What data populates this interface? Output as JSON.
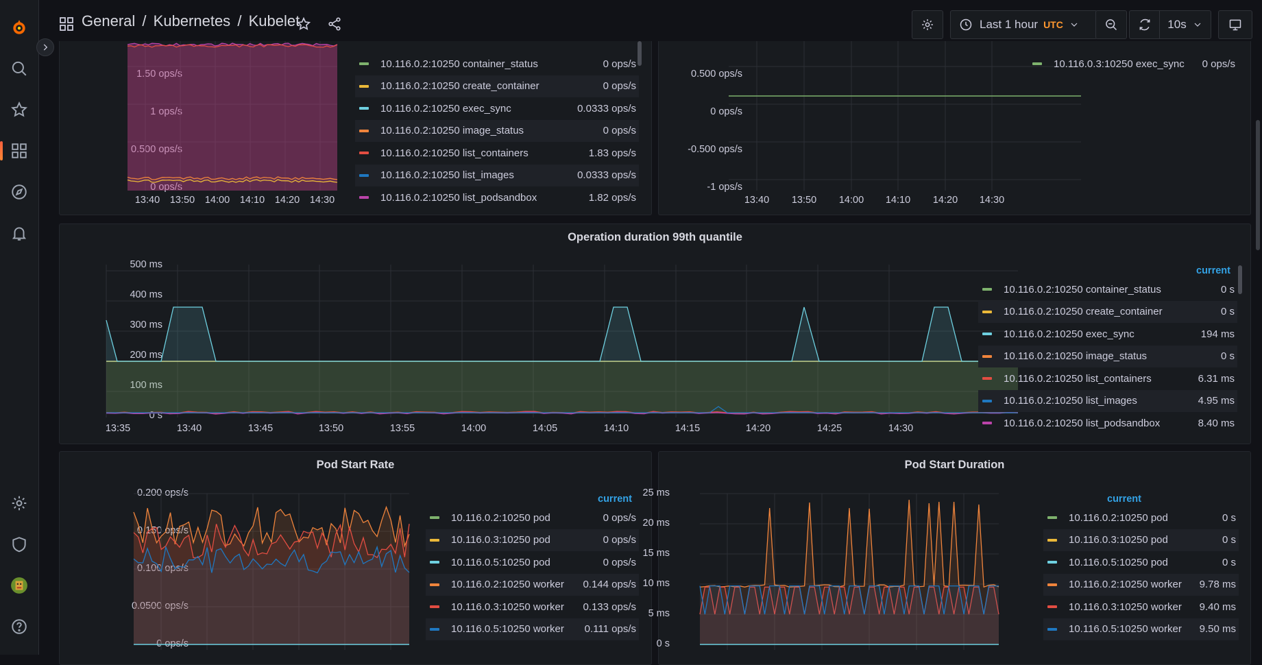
{
  "breadcrumb": {
    "general": "General",
    "sep1": "/",
    "kubernetes": "Kubernetes",
    "sep2": "/",
    "kubelet": "Kubelet"
  },
  "toolbar": {
    "time_range": "Last 1 hour",
    "timezone": "UTC",
    "refresh_interval": "10s"
  },
  "icons": [
    "grafana-logo-icon",
    "search-icon",
    "star-icon",
    "dashboards-icon",
    "explore-icon",
    "alerting-icon",
    "settings-icon",
    "shield-icon",
    "avatar",
    "help-icon",
    "chevron-right-icon",
    "dashboard-grid-icon",
    "share-icon",
    "gear-icon",
    "clock-icon",
    "chevron-down-icon",
    "zoom-out-icon",
    "refresh-icon",
    "tv-icon"
  ],
  "colors": {
    "green": "#7eb26d",
    "yellow": "#eab839",
    "cyan": "#6ed0e0",
    "orange": "#ef843c",
    "red": "#e24d42",
    "blue": "#1f78c1",
    "purple": "#ba43a9",
    "accent": "#33a2e5"
  },
  "panels": {
    "ops_left": {
      "ylabels": [
        "1.50 ops/s",
        "1 ops/s",
        "0.500 ops/s",
        "0 ops/s"
      ],
      "xlabels": [
        "13:40",
        "13:50",
        "14:00",
        "14:10",
        "14:20",
        "14:30"
      ],
      "legend": [
        {
          "name": "10.116.0.2:10250 container_status",
          "value": "0 ops/s",
          "color": "#7eb26d"
        },
        {
          "name": "10.116.0.2:10250 create_container",
          "value": "0 ops/s",
          "color": "#eab839"
        },
        {
          "name": "10.116.0.2:10250 exec_sync",
          "value": "0.0333 ops/s",
          "color": "#6ed0e0"
        },
        {
          "name": "10.116.0.2:10250 image_status",
          "value": "0 ops/s",
          "color": "#ef843c"
        },
        {
          "name": "10.116.0.2:10250 list_containers",
          "value": "1.83 ops/s",
          "color": "#e24d42"
        },
        {
          "name": "10.116.0.2:10250 list_images",
          "value": "0.0333 ops/s",
          "color": "#1f78c1"
        },
        {
          "name": "10.116.0.2:10250 list_podsandbox",
          "value": "1.82 ops/s",
          "color": "#ba43a9"
        }
      ]
    },
    "ops_right": {
      "ylabels": [
        "0.500 ops/s",
        "0 ops/s",
        "-0.500 ops/s",
        "-1 ops/s"
      ],
      "xlabels": [
        "13:40",
        "13:50",
        "14:00",
        "14:10",
        "14:20",
        "14:30"
      ],
      "legend": [
        {
          "name": "10.116.0.3:10250 exec_sync",
          "value": "0 ops/s",
          "color": "#7eb26d"
        }
      ]
    },
    "op_duration": {
      "title": "Operation duration 99th quantile",
      "legend_header": "current",
      "ylabels": [
        "500 ms",
        "400 ms",
        "300 ms",
        "200 ms",
        "100 ms",
        "0 s"
      ],
      "xlabels": [
        "13:35",
        "13:40",
        "13:45",
        "13:50",
        "13:55",
        "14:00",
        "14:05",
        "14:10",
        "14:15",
        "14:20",
        "14:25",
        "14:30"
      ],
      "legend": [
        {
          "name": "10.116.0.2:10250 container_status",
          "value": "0 s",
          "color": "#7eb26d"
        },
        {
          "name": "10.116.0.2:10250 create_container",
          "value": "0 s",
          "color": "#eab839"
        },
        {
          "name": "10.116.0.2:10250 exec_sync",
          "value": "194 ms",
          "color": "#6ed0e0"
        },
        {
          "name": "10.116.0.2:10250 image_status",
          "value": "0 s",
          "color": "#ef843c"
        },
        {
          "name": "10.116.0.2:10250 list_containers",
          "value": "6.31 ms",
          "color": "#e24d42"
        },
        {
          "name": "10.116.0.2:10250 list_images",
          "value": "4.95 ms",
          "color": "#1f78c1"
        },
        {
          "name": "10.116.0.2:10250 list_podsandbox",
          "value": "8.40 ms",
          "color": "#ba43a9"
        }
      ]
    },
    "pod_start_rate": {
      "title": "Pod Start Rate",
      "legend_header": "current",
      "ylabels": [
        "0.200 ops/s",
        "0.150 ops/s",
        "0.100 ops/s",
        "0.0500 ops/s",
        "0 ops/s"
      ],
      "legend": [
        {
          "name": "10.116.0.2:10250 pod",
          "value": "0 ops/s",
          "color": "#7eb26d"
        },
        {
          "name": "10.116.0.3:10250 pod",
          "value": "0 ops/s",
          "color": "#eab839"
        },
        {
          "name": "10.116.0.5:10250 pod",
          "value": "0 ops/s",
          "color": "#6ed0e0"
        },
        {
          "name": "10.116.0.2:10250 worker",
          "value": "0.144 ops/s",
          "color": "#ef843c"
        },
        {
          "name": "10.116.0.3:10250 worker",
          "value": "0.133 ops/s",
          "color": "#e24d42"
        },
        {
          "name": "10.116.0.5:10250 worker",
          "value": "0.111 ops/s",
          "color": "#1f78c1"
        }
      ]
    },
    "pod_start_duration": {
      "title": "Pod Start Duration",
      "legend_header": "current",
      "ylabels": [
        "25 ms",
        "20 ms",
        "15 ms",
        "10 ms",
        "5 ms",
        "0 s"
      ],
      "legend": [
        {
          "name": "10.116.0.2:10250 pod",
          "value": "0 s",
          "color": "#7eb26d"
        },
        {
          "name": "10.116.0.3:10250 pod",
          "value": "0 s",
          "color": "#eab839"
        },
        {
          "name": "10.116.0.5:10250 pod",
          "value": "0 s",
          "color": "#6ed0e0"
        },
        {
          "name": "10.116.0.2:10250 worker",
          "value": "9.78 ms",
          "color": "#ef843c"
        },
        {
          "name": "10.116.0.3:10250 worker",
          "value": "9.40 ms",
          "color": "#e24d42"
        },
        {
          "name": "10.116.0.5:10250 worker",
          "value": "9.50 ms",
          "color": "#1f78c1"
        }
      ]
    }
  }
}
